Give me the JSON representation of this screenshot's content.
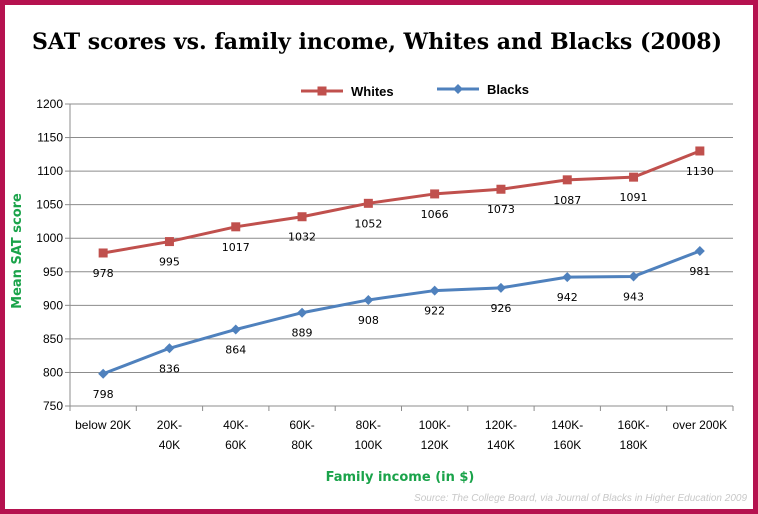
{
  "chart_data": {
    "type": "line",
    "title": "SAT scores vs. family income, Whites and Blacks (2008)",
    "xlabel": "Family income (in $)",
    "ylabel": "Mean SAT score",
    "ylim": [
      750,
      1200
    ],
    "yticks": [
      750,
      800,
      850,
      900,
      950,
      1000,
      1050,
      1100,
      1150,
      1200
    ],
    "grid": true,
    "legend": "top-center",
    "categories": [
      [
        "below 20K"
      ],
      [
        "20K-",
        "40K"
      ],
      [
        "40K-",
        "60K"
      ],
      [
        "60K-",
        "80K"
      ],
      [
        "80K-",
        "100K"
      ],
      [
        "100K-",
        "120K"
      ],
      [
        "120K-",
        "140K"
      ],
      [
        "140K-",
        "160K"
      ],
      [
        "160K-",
        "180K"
      ],
      [
        "over 200K"
      ]
    ],
    "series": [
      {
        "name": "Whites",
        "color": "#c0504d",
        "marker": "square",
        "values": [
          978,
          995,
          1017,
          1032,
          1052,
          1066,
          1073,
          1087,
          1091,
          1130
        ]
      },
      {
        "name": "Blacks",
        "color": "#4f81bd",
        "marker": "diamond",
        "values": [
          798,
          836,
          864,
          889,
          908,
          922,
          926,
          942,
          943,
          981
        ]
      }
    ],
    "source": "Source: The College Board, via Journal of Blacks in Higher Education 2009"
  }
}
